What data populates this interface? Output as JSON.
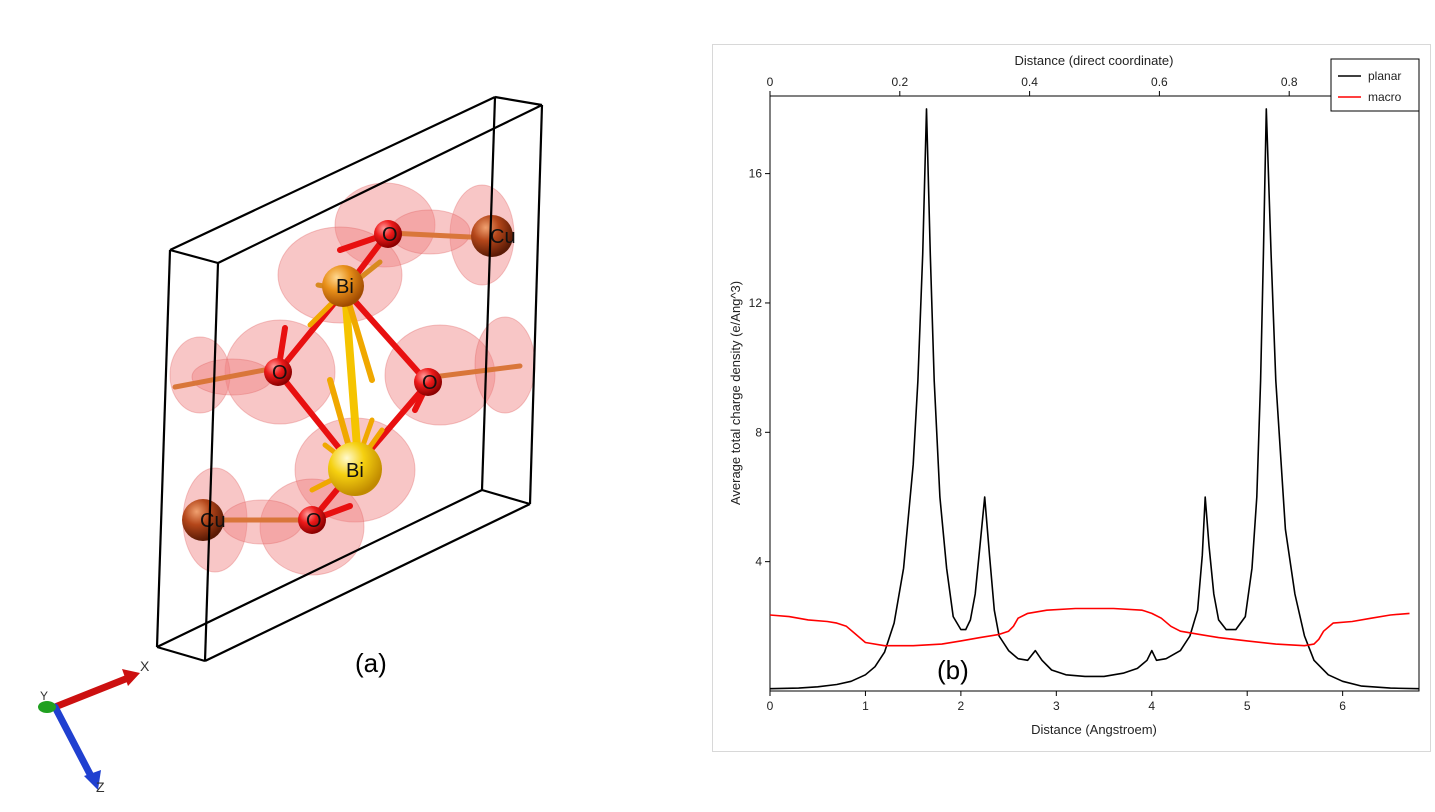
{
  "structure": {
    "panel_label": "(a)",
    "atoms": {
      "cu_top": "Cu",
      "cu_bottom": "Cu",
      "bi_top": "Bi",
      "bi_bottom": "Bi",
      "o_top": "O",
      "o_left": "O",
      "o_right": "O",
      "o_bottom": "O"
    },
    "axes": {
      "x": "X",
      "y": "Y",
      "z": "Z"
    },
    "colors": {
      "oxygen": "#e81010",
      "copper": "#b4461a",
      "bismuth_top": "#e8901a",
      "bismuth_bottom": "#f5d010",
      "isosurface": "#f08080",
      "cell_edges": "#000000",
      "axis_x": "#cc1010",
      "axis_y": "#20a020",
      "axis_z": "#2040d0"
    }
  },
  "chart_data": {
    "type": "line",
    "panel_label": "(b)",
    "xlabel": "Distance (Angstroem)",
    "x2label": "Distance (direct coordinate)",
    "ylabel": "Average total charge density (e/Ang^3)",
    "xlim": [
      0,
      6.8
    ],
    "ylim": [
      0,
      18.4
    ],
    "x2lim": [
      0,
      1
    ],
    "xticks": [
      0,
      1,
      2,
      3,
      4,
      5,
      6
    ],
    "x2ticks": [
      0,
      0.2,
      0.4,
      0.6,
      0.8
    ],
    "x2ticklabels": [
      "0",
      "0.2",
      "0.4",
      "0.6",
      "0.8"
    ],
    "yticks": [
      4,
      8,
      12,
      16
    ],
    "grid": false,
    "legend_position": "top-right",
    "series": [
      {
        "name": "planar",
        "color": "#000000",
        "x": [
          0,
          0.3,
          0.5,
          0.7,
          0.85,
          1.0,
          1.1,
          1.2,
          1.3,
          1.4,
          1.5,
          1.55,
          1.6,
          1.64,
          1.68,
          1.72,
          1.78,
          1.85,
          1.92,
          2.0,
          2.05,
          2.1,
          2.15,
          2.2,
          2.25,
          2.3,
          2.35,
          2.4,
          2.5,
          2.6,
          2.7,
          2.78,
          2.85,
          2.95,
          3.1,
          3.3,
          3.5,
          3.7,
          3.85,
          3.95,
          4.0,
          4.05,
          4.15,
          4.3,
          4.4,
          4.48,
          4.53,
          4.56,
          4.6,
          4.65,
          4.7,
          4.78,
          4.88,
          4.98,
          5.05,
          5.1,
          5.14,
          5.17,
          5.2,
          5.25,
          5.3,
          5.4,
          5.5,
          5.6,
          5.7,
          5.85,
          6.0,
          6.2,
          6.5,
          6.8
        ],
        "y": [
          0.07,
          0.09,
          0.13,
          0.2,
          0.3,
          0.5,
          0.75,
          1.2,
          2.1,
          3.8,
          7.0,
          9.6,
          13.5,
          18.0,
          13.5,
          9.6,
          6.0,
          3.8,
          2.3,
          1.9,
          1.9,
          2.2,
          3.0,
          4.5,
          6.0,
          4.2,
          2.5,
          1.7,
          1.25,
          1.0,
          0.95,
          1.25,
          0.95,
          0.65,
          0.5,
          0.45,
          0.45,
          0.55,
          0.7,
          0.95,
          1.25,
          0.95,
          1.0,
          1.25,
          1.7,
          2.5,
          4.2,
          6.0,
          4.5,
          3.0,
          2.2,
          1.9,
          1.9,
          2.3,
          3.8,
          6.0,
          9.6,
          13.5,
          18.0,
          13.5,
          9.6,
          5.0,
          3.0,
          1.7,
          0.95,
          0.5,
          0.3,
          0.15,
          0.09,
          0.07
        ]
      },
      {
        "name": "macro",
        "color": "#ff0000",
        "x": [
          0,
          0.2,
          0.4,
          0.6,
          0.7,
          0.8,
          0.9,
          1.0,
          1.2,
          1.5,
          1.8,
          2.0,
          2.2,
          2.4,
          2.5,
          2.55,
          2.6,
          2.7,
          2.9,
          3.2,
          3.6,
          3.9,
          4.0,
          4.1,
          4.2,
          4.3,
          4.5,
          4.7,
          5.0,
          5.3,
          5.6,
          5.7,
          5.75,
          5.8,
          5.9,
          6.1,
          6.3,
          6.5,
          6.7
        ],
        "y": [
          2.35,
          2.3,
          2.2,
          2.15,
          2.1,
          2.0,
          1.75,
          1.5,
          1.4,
          1.4,
          1.45,
          1.55,
          1.65,
          1.75,
          1.85,
          2.0,
          2.25,
          2.4,
          2.5,
          2.55,
          2.55,
          2.5,
          2.4,
          2.25,
          2.0,
          1.85,
          1.75,
          1.65,
          1.55,
          1.45,
          1.4,
          1.45,
          1.6,
          1.85,
          2.1,
          2.15,
          2.25,
          2.35,
          2.4
        ]
      }
    ]
  }
}
